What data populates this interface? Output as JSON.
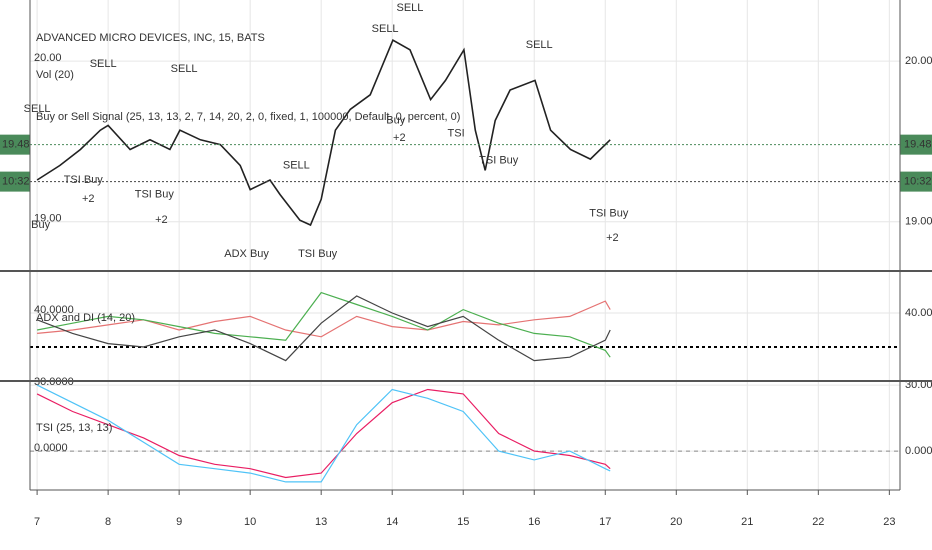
{
  "chart_data": [
    {
      "type": "line",
      "title": "ADVANCED MICRO DEVICES, INC, 15, BATS",
      "indicators": [
        "Vol (20)",
        "Buy or Sell Signal (25, 13, 13, 2, 7, 14, 20, 2, 0, fixed, 1, 100000, Default, 0, percent, 0)"
      ],
      "x": [
        0,
        0.32,
        0.61,
        0.89,
        1,
        1.31,
        1.59,
        1.87,
        2.01,
        2.3,
        2.58,
        2.86,
        3,
        3.14,
        3.28,
        3.42,
        3.7,
        3.85,
        4,
        4.2,
        4.41,
        4.69,
        5.01,
        5.25,
        5.54,
        5.75,
        6.01,
        6.17,
        6.31,
        6.45,
        6.66,
        7.01,
        7.23,
        7.51,
        7.79,
        8.07
      ],
      "series": [
        {
          "color": "#222222",
          "values": [
            19.26,
            19.35,
            19.45,
            19.57,
            19.6,
            19.45,
            19.51,
            19.45,
            19.57,
            19.51,
            19.48,
            19.35,
            19.2,
            19.23,
            19.26,
            19.17,
            19.01,
            18.98,
            19.14,
            19.57,
            19.7,
            19.79,
            20.13,
            20.07,
            19.76,
            19.88,
            20.07,
            19.57,
            19.32,
            19.63,
            19.82,
            19.88,
            19.57,
            19.45,
            19.39,
            19.51
          ]
        }
      ],
      "xlim": [
        -0.1,
        12.15
      ],
      "ylim": [
        18.7,
        20.38
      ],
      "yticks": [
        {
          "value": 20,
          "label": "20.00"
        },
        {
          "value": 19,
          "label": "19.00"
        }
      ],
      "last_price": {
        "value": 19.48,
        "label": "19.48"
      },
      "countdown": {
        "value": 19.25,
        "label": "10:32"
      },
      "annotations": [
        {
          "text": "SELL",
          "x": 0,
          "y": 19.7,
          "color": "#e53935"
        },
        {
          "text": "SELL",
          "x": 0.93,
          "y": 19.98,
          "color": "#e53935"
        },
        {
          "text": "SELL",
          "x": 2.07,
          "y": 19.95,
          "color": "#e53935"
        },
        {
          "text": "SELL",
          "x": 3.65,
          "y": 19.35,
          "color": "#e53935"
        },
        {
          "text": "SELL",
          "x": 4.9,
          "y": 20.2,
          "color": "#e53935"
        },
        {
          "text": "SELL",
          "x": 5.25,
          "y": 20.33,
          "color": "#e53935"
        },
        {
          "text": "SELL",
          "x": 7.07,
          "y": 20.1,
          "color": "#e53935"
        },
        {
          "text": "Buy",
          "x": 0.05,
          "y": 18.98,
          "color": "#1e88e5"
        },
        {
          "text": "TSI Buy",
          "x": 0.65,
          "y": 19.26,
          "color": "#1e88e5"
        },
        {
          "text": "TSI Buy",
          "x": 1.65,
          "y": 19.17,
          "color": "#1e88e5"
        },
        {
          "text": "ADX Buy",
          "x": 2.95,
          "y": 18.8,
          "color": "#1e88e5"
        },
        {
          "text": "TSI Buy",
          "x": 3.95,
          "y": 18.8,
          "color": "#1e88e5"
        },
        {
          "text": "Buy",
          "x": 5.05,
          "y": 19.63,
          "color": "#1e88e5"
        },
        {
          "text": "TSI",
          "x": 5.9,
          "y": 19.55,
          "color": "#1e88e5"
        },
        {
          "text": "TSI Buy",
          "x": 6.5,
          "y": 19.38,
          "color": "#1e88e5"
        },
        {
          "text": "TSI Buy",
          "x": 8.05,
          "y": 19.05,
          "color": "#1e88e5"
        },
        {
          "text": "+2",
          "x": 0.72,
          "y": 19.14,
          "color": "#1e88e5"
        },
        {
          "text": "+2",
          "x": 1.75,
          "y": 19.01,
          "color": "#1e88e5"
        },
        {
          "text": "+2",
          "x": 5.1,
          "y": 19.52,
          "color": "#1e88e5"
        },
        {
          "text": "+2",
          "x": 8.1,
          "y": 18.9,
          "color": "#1e88e5"
        }
      ],
      "grid": true
    },
    {
      "type": "line",
      "title": "ADX and DI (14, 20)",
      "x": [
        0,
        0.5,
        1,
        1.5,
        2,
        2.5,
        3,
        3.5,
        4,
        4.5,
        5,
        5.5,
        6,
        6.5,
        7,
        7.5,
        8,
        8.07
      ],
      "series": [
        {
          "color": "#e57373",
          "values": [
            28,
            30,
            33,
            36,
            30,
            35,
            38,
            30,
            26,
            38,
            32,
            30,
            35,
            33,
            36,
            38,
            47,
            42
          ]
        },
        {
          "color": "#4caf50",
          "values": [
            30,
            34,
            38,
            36,
            32,
            28,
            26,
            24,
            52,
            45,
            38,
            30,
            42,
            34,
            28,
            26,
            18,
            14
          ]
        },
        {
          "color": "#444444",
          "values": [
            36,
            28,
            22,
            20,
            26,
            30,
            22,
            12,
            34,
            50,
            40,
            32,
            38,
            24,
            12,
            14,
            24,
            30
          ]
        }
      ],
      "hlines": [
        20
      ],
      "xlim": [
        -0.1,
        12.15
      ],
      "ylim": [
        0.6,
        64.1
      ],
      "yticks": [
        {
          "value": 40,
          "label": "40.0000"
        }
      ],
      "grid": true
    },
    {
      "type": "line",
      "title": "TSI (25, 13, 13)",
      "x": [
        0,
        0.5,
        1,
        1.5,
        2,
        2.5,
        3,
        3.5,
        4,
        4.5,
        5,
        5.5,
        6,
        6.5,
        7,
        7.5,
        8,
        8.07
      ],
      "series": [
        {
          "color": "#e91e63",
          "values": [
            26,
            18,
            12,
            6,
            -2,
            -6,
            -8,
            -12,
            -10,
            8,
            22,
            28,
            26,
            8,
            0,
            -2,
            -6,
            -8
          ]
        },
        {
          "color": "#4fc3f7",
          "values": [
            30,
            22,
            14,
            4,
            -6,
            -8,
            -10,
            -14,
            -14,
            12,
            28,
            24,
            18,
            0,
            -4,
            0,
            -8,
            -9
          ]
        }
      ],
      "hlines": [
        0
      ],
      "xlim": [
        -0.1,
        12.15
      ],
      "ylim": [
        -17.7,
        31.4
      ],
      "yticks": [
        {
          "value": 30,
          "label": "30.0000"
        },
        {
          "value": 0,
          "label": "0.0000"
        }
      ],
      "xticks": [
        {
          "value": 0,
          "label": "7"
        },
        {
          "value": 1,
          "label": "8"
        },
        {
          "value": 2,
          "label": "9"
        },
        {
          "value": 3,
          "label": "10"
        },
        {
          "value": 4,
          "label": "13"
        },
        {
          "value": 5,
          "label": "14"
        },
        {
          "value": 6,
          "label": "15"
        },
        {
          "value": 7,
          "label": "16"
        },
        {
          "value": 8,
          "label": "17"
        },
        {
          "value": 9,
          "label": "20"
        },
        {
          "value": 10,
          "label": "21"
        },
        {
          "value": 11,
          "label": "22"
        },
        {
          "value": 12,
          "label": "23"
        }
      ],
      "grid": true
    }
  ]
}
